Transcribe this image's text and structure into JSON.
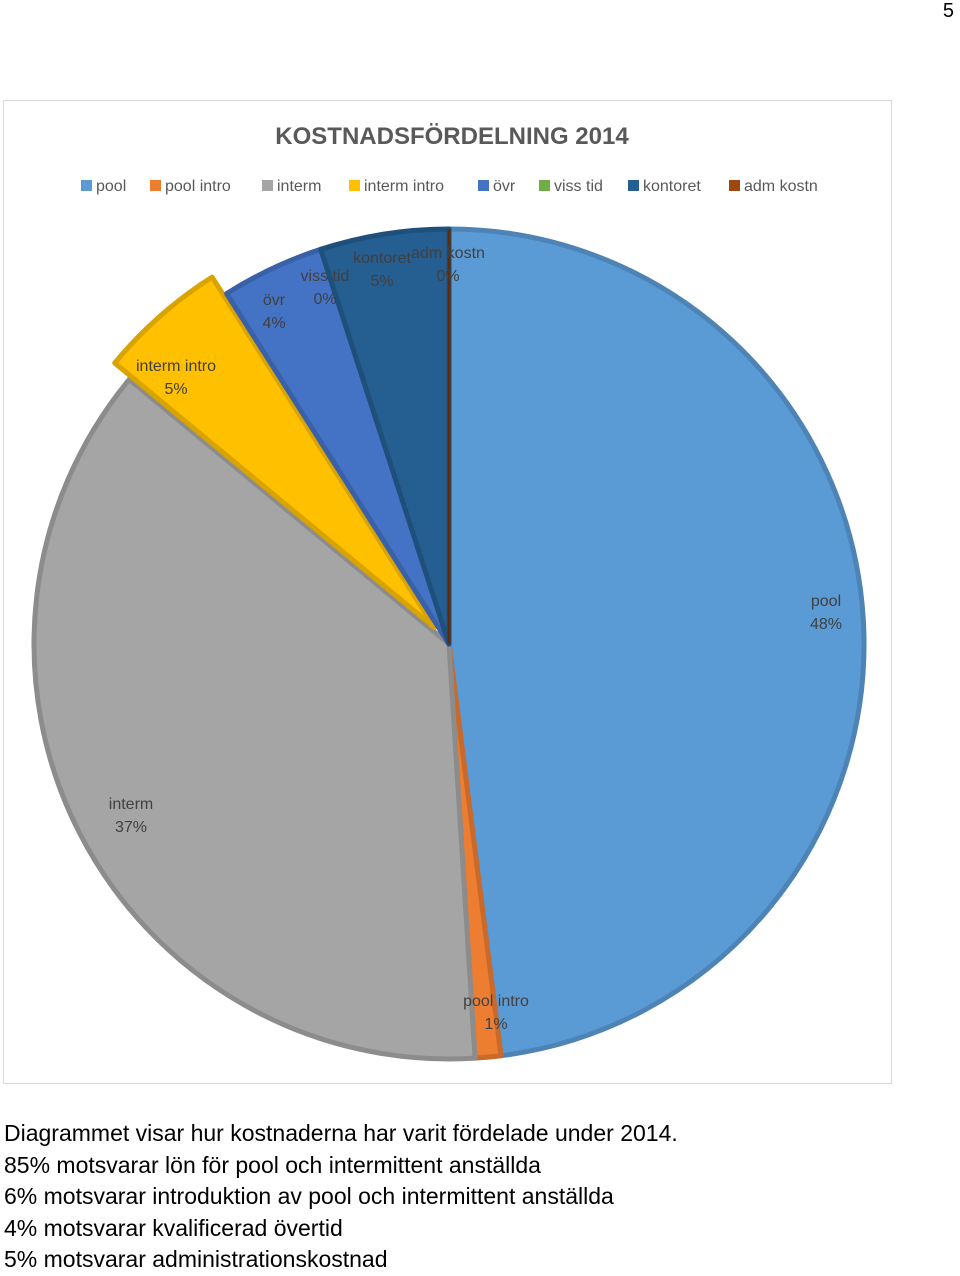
{
  "page": {
    "number": "5"
  },
  "chart_data": {
    "type": "pie",
    "title": "KOSTNADSFÖRDELNING 2014",
    "legend_position": "top",
    "categories": [
      "pool",
      "pool intro",
      "interm",
      "interm intro",
      "övr",
      "viss tid",
      "kontoret",
      "adm kostn"
    ],
    "values": [
      48,
      1,
      37,
      5,
      4,
      0,
      5,
      0
    ],
    "data_labels": [
      "48%",
      "1%",
      "37%",
      "5%",
      "4%",
      "0%",
      "5%",
      "0%"
    ],
    "colors": [
      "#5b9bd5",
      "#ed7d31",
      "#a5a5a5",
      "#ffc000",
      "#4472c4",
      "#70ad47",
      "#255e91",
      "#9e480e"
    ],
    "exploded": [
      false,
      false,
      false,
      true,
      false,
      false,
      false,
      false
    ]
  },
  "caption": {
    "lines": [
      "Diagrammet visar hur kostnaderna har varit fördelade under 2014.",
      "85% motsvarar lön för pool och intermittent anställda",
      "6% motsvarar introduktion av pool och intermittent anställda",
      "4% motsvarar kvalificerad övertid",
      "5% motsvarar administrationskostnad"
    ]
  }
}
